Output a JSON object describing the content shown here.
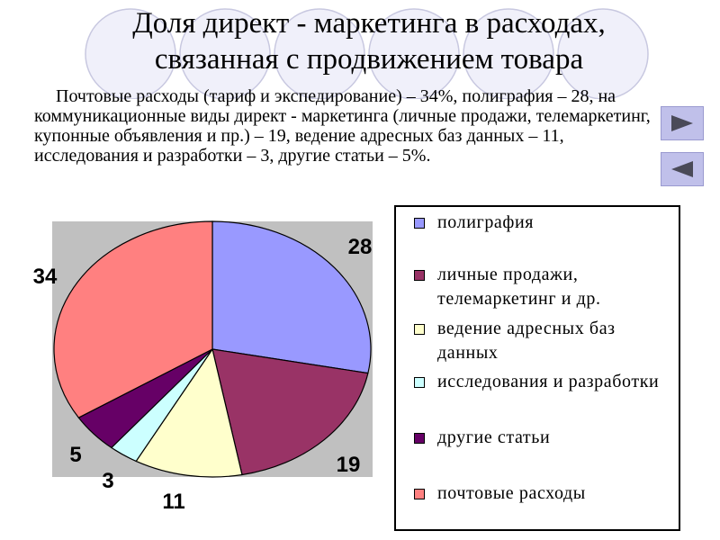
{
  "slide": {
    "title_line1": "Доля директ - маркетинга в расходах,",
    "title_line2": "связанная с продвижением товара",
    "intro": "Почтовые расходы (тариф и экспедирование) – 34%, полиграфия – 28, на коммуникационные виды директ - маркетинга (личные продажи, телемаркетинг, купонные объявления и пр.) – 19, ведение адресных баз данных – 11, исследования и разработки – 3, другие статьи – 5%."
  },
  "nav": {
    "next_icon": "play-right-icon",
    "prev_icon": "play-left-icon",
    "button_color": "#c0c0ea",
    "arrow_color": "#4a4a58"
  },
  "chart_data": {
    "type": "pie",
    "title": "",
    "categories": [
      "полиграфия",
      "личные продажи, телемаркетинг и др.",
      "ведение адресных баз данных",
      "исследования и разработки",
      "другие статьи",
      "почтовые расходы"
    ],
    "values": [
      28,
      19,
      11,
      3,
      5,
      34
    ],
    "data_labels": [
      "28",
      "19",
      "11",
      "3",
      "5",
      "34"
    ],
    "colors": [
      "#9999ff",
      "#993366",
      "#ffffcc",
      "#ccffff",
      "#660066",
      "#ff8080"
    ],
    "start_angle": "12 o'clock",
    "direction": "clockwise",
    "plot_background": "#c0c0c0",
    "legend_position": "right"
  }
}
